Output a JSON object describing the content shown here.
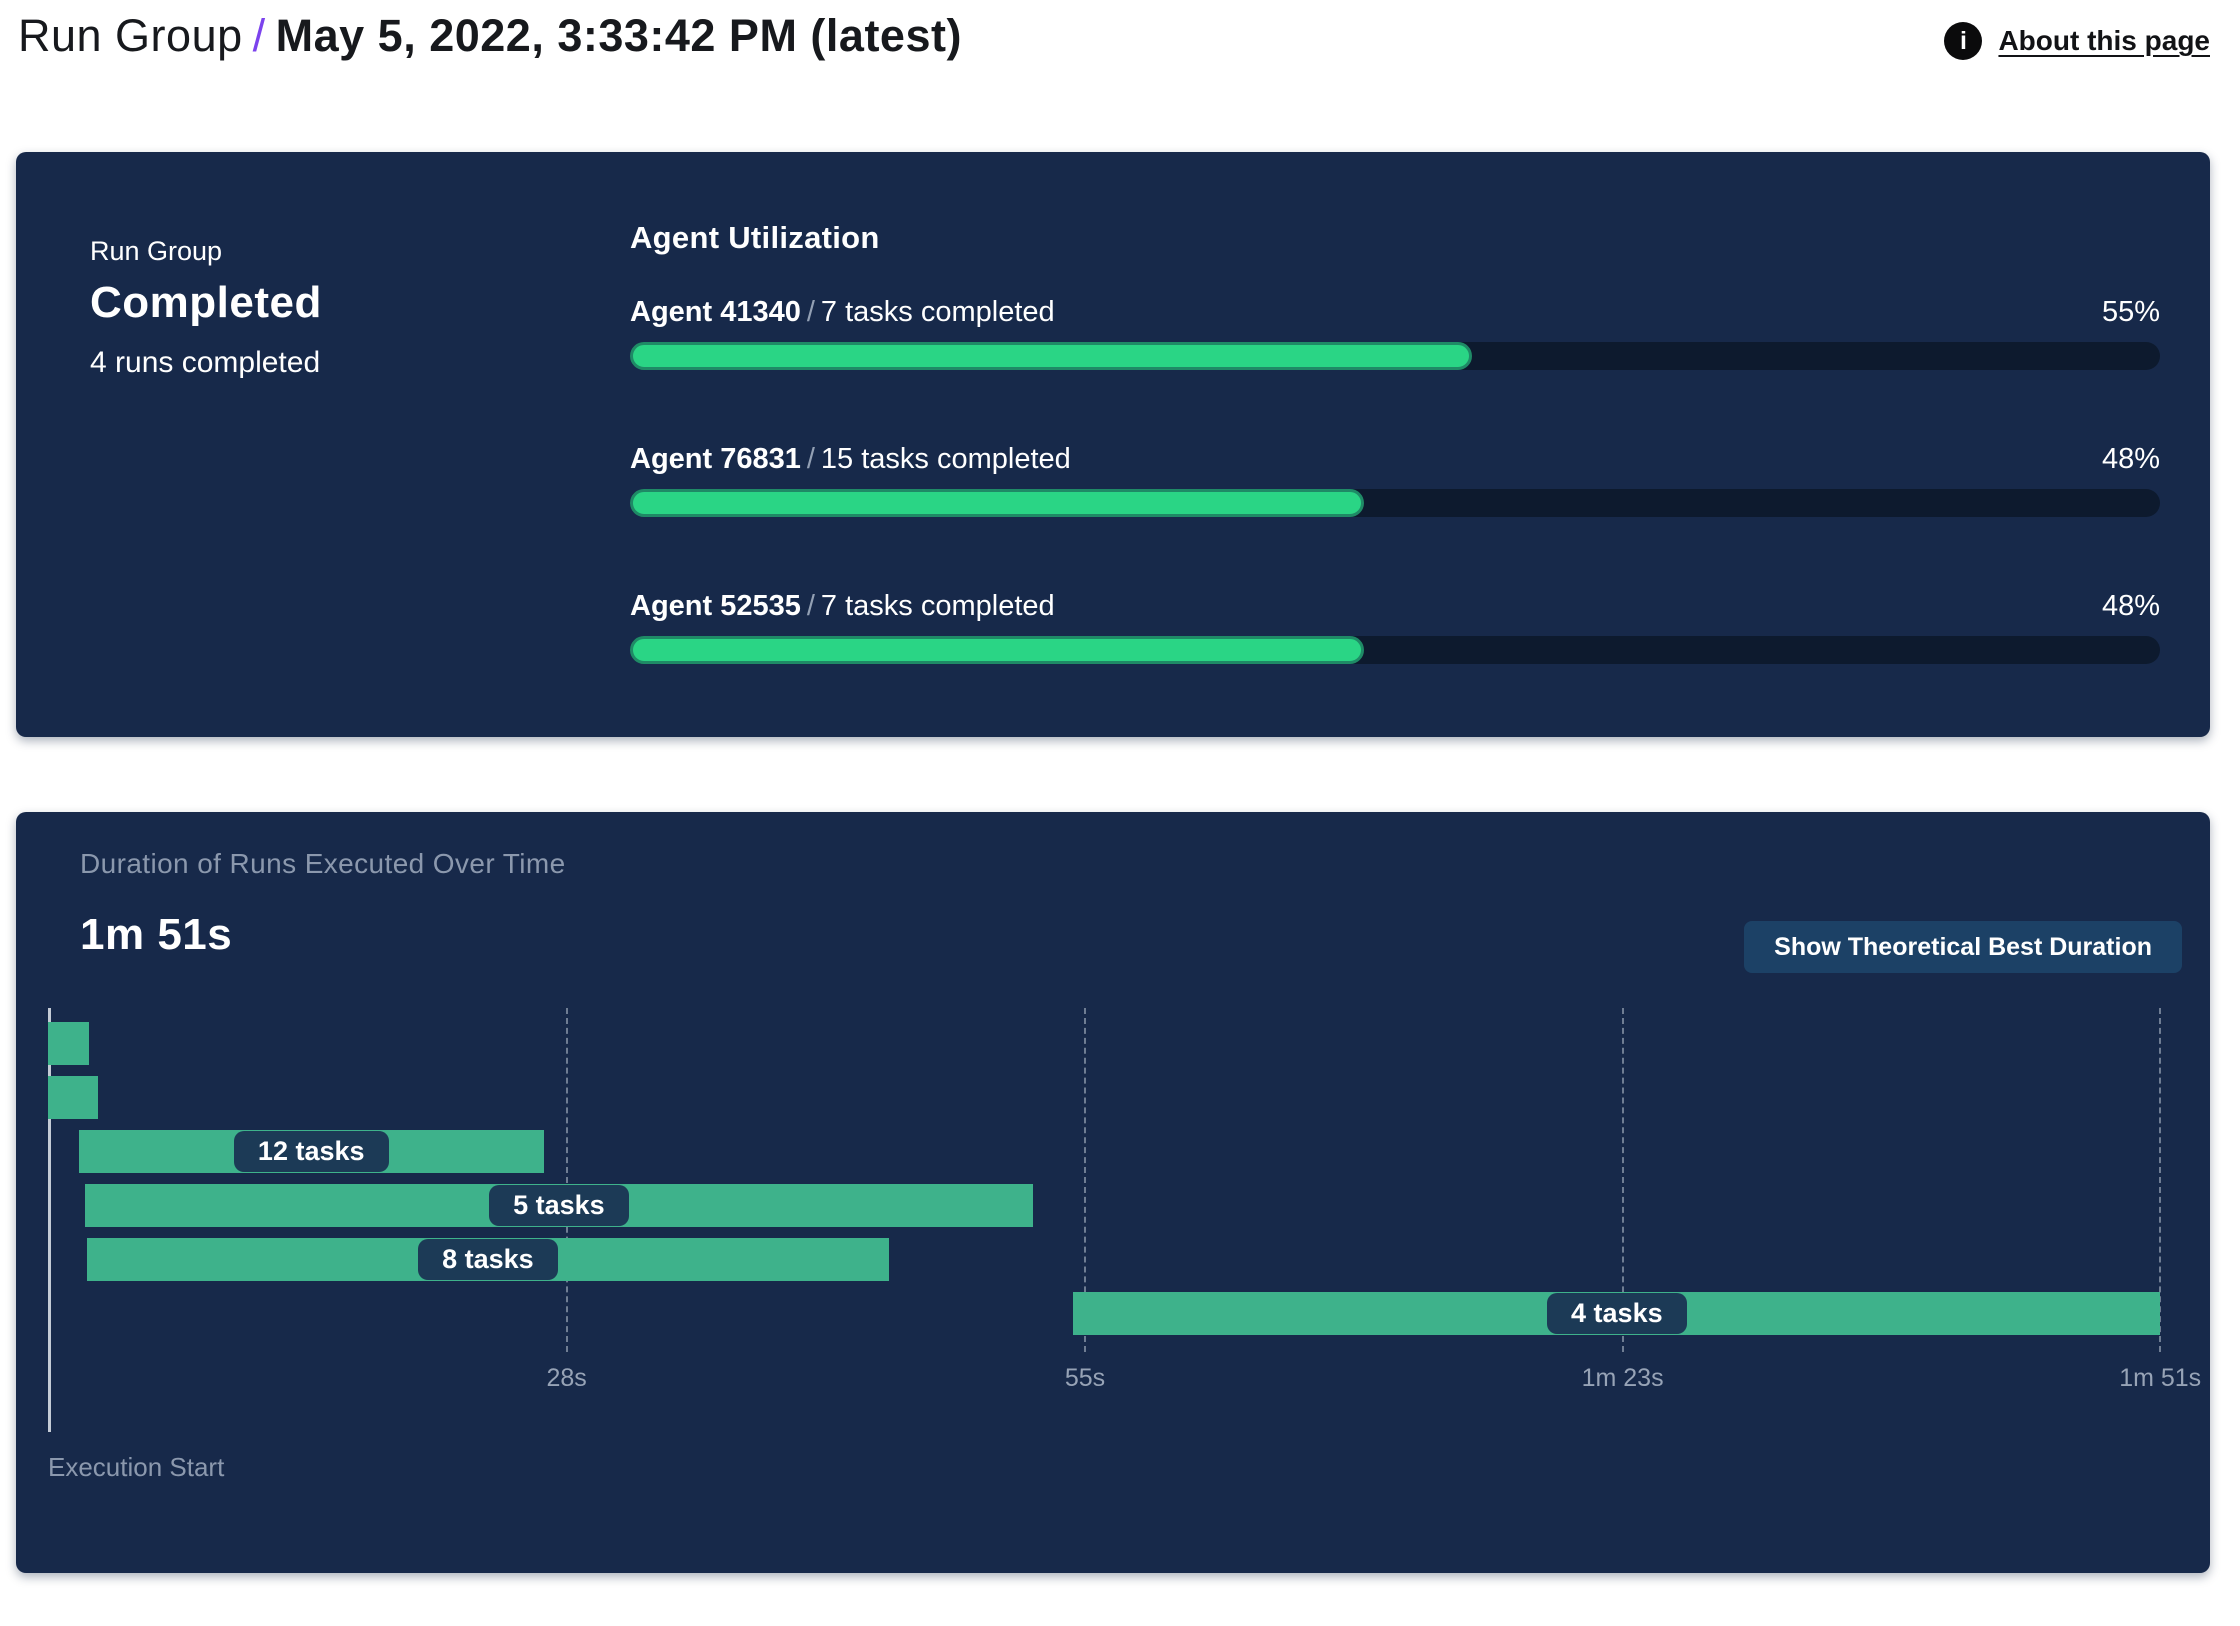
{
  "header": {
    "breadcrumb_root": "Run Group",
    "separator": "/",
    "title": "May 5, 2022, 3:33:42 PM (latest)"
  },
  "about": {
    "label": "About this page",
    "icon_glyph": "i"
  },
  "status_card": {
    "eyebrow": "Run Group",
    "status": "Completed",
    "runs_summary": "4 runs completed",
    "section_title": "Agent Utilization",
    "separator": "/"
  },
  "duration_card": {
    "title": "Duration of Runs Executed Over Time",
    "total_duration": "1m 51s",
    "button_label": "Show Theoretical Best Duration",
    "execution_start_label": "Execution Start"
  },
  "chart_data": [
    {
      "type": "bar",
      "title": "Agent Utilization",
      "orientation": "horizontal",
      "xlim": [
        0,
        100
      ],
      "series": [
        {
          "name": "Agent 41340",
          "tasks": "7 tasks completed",
          "percent": 55,
          "percent_label": "55%"
        },
        {
          "name": "Agent 76831",
          "tasks": "15 tasks completed",
          "percent": 48,
          "percent_label": "48%"
        },
        {
          "name": "Agent 52535",
          "tasks": "7 tasks completed",
          "percent": 48,
          "percent_label": "48%"
        }
      ]
    },
    {
      "type": "gantt",
      "title": "Duration of Runs Executed Over Time",
      "total_duration_label": "1m 51s",
      "xlabel": "Execution Start",
      "xlim_s": [
        0,
        111
      ],
      "grid": "dashed-vertical",
      "x_ticks": [
        {
          "t": 28,
          "label": "28s"
        },
        {
          "t": 55,
          "label": "55s"
        },
        {
          "t": 83,
          "label": "1m 23s"
        },
        {
          "t": 111,
          "label": "1m 51s"
        }
      ],
      "bars": [
        {
          "start_s": 1.0,
          "end_s": 3.1,
          "label": ""
        },
        {
          "start_s": 1.0,
          "end_s": 3.6,
          "label": ""
        },
        {
          "start_s": 2.6,
          "end_s": 26.8,
          "label": "12 tasks"
        },
        {
          "start_s": 2.9,
          "end_s": 52.3,
          "label": "5 tasks"
        },
        {
          "start_s": 3.0,
          "end_s": 44.8,
          "label": "8 tasks"
        },
        {
          "start_s": 54.4,
          "end_s": 111.0,
          "label": "4 tasks"
        }
      ]
    }
  ],
  "colors": {
    "card_bg": "#17294a",
    "progress_fill": "#2ad585",
    "progress_fill_edge": "#1f8a66",
    "progress_track": "#0d1a2e",
    "gantt_bar": "#3eb28b",
    "task_pill": "#1c3a56",
    "breadcrumb_slash": "#7c43ed",
    "muted_text": "#8b98ad",
    "button_bg": "#1c4166"
  }
}
